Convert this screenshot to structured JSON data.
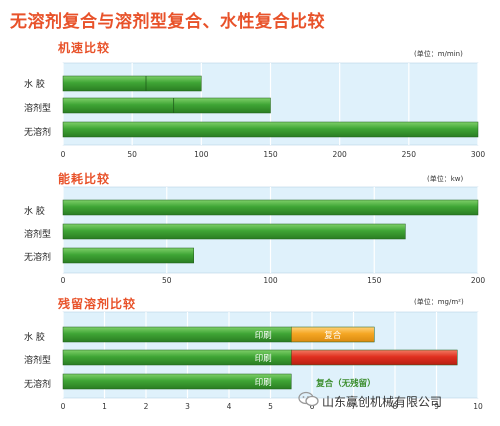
{
  "title": "无溶剂复合与溶剂型复合、水性复合比较",
  "watermark": {
    "text": "山东赢创机械有限公司",
    "icon": "wechat-icon"
  },
  "colors": {
    "bar_green": "#3fa535",
    "bar_orange": "#f5a623",
    "bar_red": "#e03020",
    "plot_bg": "#dff1fb",
    "title_orange": "#e8522a"
  },
  "chart_data": [
    {
      "type": "bar",
      "orientation": "horizontal",
      "title": "机速比较",
      "unit": "(单位：m/min)",
      "categories": [
        "水 胶",
        "溶剂型",
        "无溶剂"
      ],
      "values": [
        100,
        150,
        300
      ],
      "inner_divider": [
        60,
        80,
        null
      ],
      "xlim": [
        0,
        300
      ],
      "xticks": [
        0,
        50,
        100,
        150,
        200,
        250,
        300
      ],
      "grid": true
    },
    {
      "type": "bar",
      "orientation": "horizontal",
      "title": "能耗比较",
      "unit": "(单位：kw)",
      "categories": [
        "水 胶",
        "溶剂型",
        "无溶剂"
      ],
      "values": [
        200,
        165,
        63
      ],
      "xlim": [
        0,
        200
      ],
      "xticks": [
        0,
        50,
        100,
        150,
        200
      ],
      "grid": true
    },
    {
      "type": "bar",
      "orientation": "horizontal",
      "stacked": true,
      "title": "残留溶剂比较",
      "unit": "(单位：mg/m²)",
      "categories": [
        "水 胶",
        "溶剂型",
        "无溶剂"
      ],
      "series": [
        {
          "name": "印刷",
          "values": [
            5.5,
            5.5,
            5.5
          ],
          "color": "#3fa535"
        },
        {
          "name": "复合",
          "values": [
            2.0,
            4.0,
            0
          ],
          "colors": [
            "#f5a623",
            "#e03020",
            null
          ]
        }
      ],
      "segment_labels": [
        [
          "印刷",
          "复合"
        ],
        [
          "印刷",
          ""
        ],
        [
          "印刷",
          ""
        ]
      ],
      "annotation": {
        "text": "复合（无残留）",
        "category": "无溶剂",
        "x": 6.1
      },
      "xlim": [
        0,
        10
      ],
      "xticks": [
        0,
        1,
        2,
        3,
        4,
        5,
        6,
        7,
        8,
        9,
        10
      ],
      "grid": true
    }
  ]
}
